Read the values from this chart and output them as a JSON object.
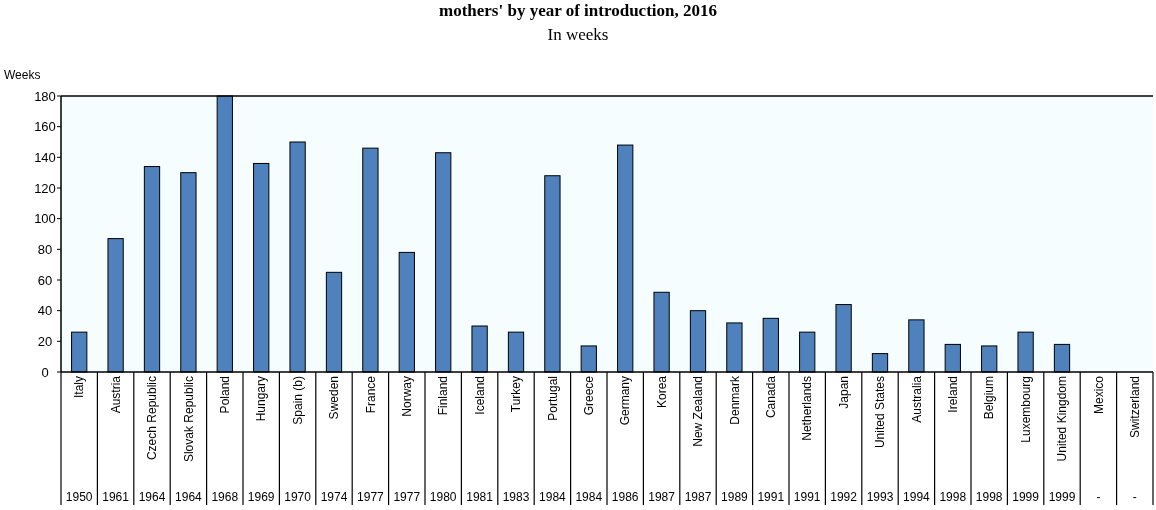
{
  "chart_data": {
    "type": "bar",
    "title": "mothers' by year of introduction, 2016",
    "subtitle": "In weeks",
    "ylabel": "Weeks",
    "categories": [
      "Italy\n1950",
      "Austria\n1961",
      "Czech Republic\n1964",
      "Slovak Republic\n1964",
      "Poland\n1968",
      "Hungary\n1969",
      "Spain (b)\n1970",
      "Sweden\n1974",
      "France\n1977",
      "Norway\n1977",
      "Finland\n1980",
      "Iceland\n1981",
      "Turkey\n1983",
      "Portugal\n1984",
      "Greece\n1984",
      "Germany\n1986",
      "Korea\n1987",
      "New Zealand\n1987",
      "Denmark\n1989",
      "Canada\n1991",
      "Netherlands\n1991",
      "Japan\n1992",
      "United States\n1993",
      "Australia\n1994",
      "Ireland\n1998",
      "Belgium\n1998",
      "Luxembourg\n1999",
      "United Kingdom\n1999",
      "Mexico\n-",
      "Switzerland\n-"
    ],
    "values": [
      26,
      87,
      134,
      130,
      180,
      136,
      150,
      65,
      146,
      78,
      143,
      30,
      26,
      128,
      17,
      148,
      52,
      40,
      32,
      35,
      26,
      44,
      12,
      34,
      18,
      17,
      26,
      18,
      0,
      0
    ],
    "color": "#4f81bd",
    "ylim": [
      0,
      180
    ],
    "yticks": [
      0,
      20,
      40,
      60,
      80,
      100,
      120,
      140,
      160,
      180
    ]
  }
}
